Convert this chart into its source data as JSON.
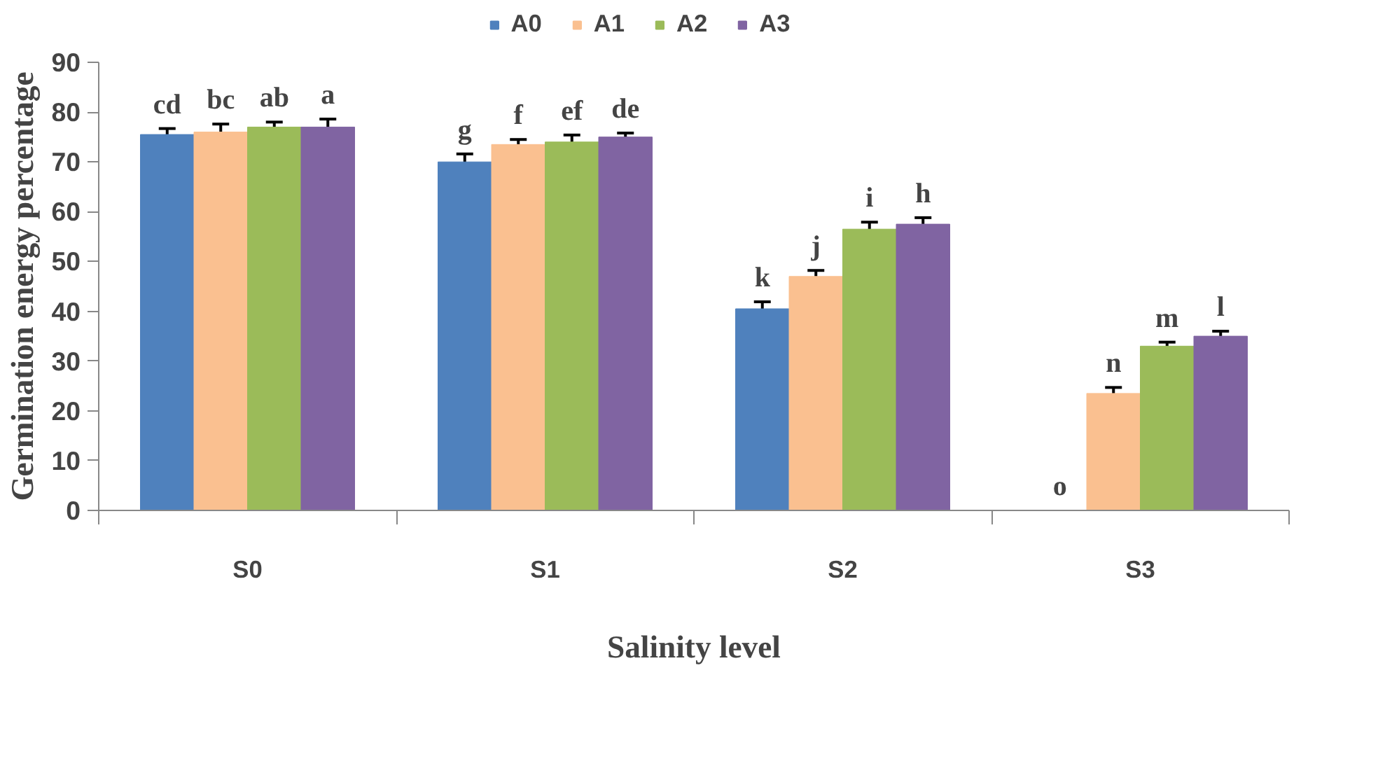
{
  "chart_data": {
    "type": "bar",
    "xlabel": "Salinity level",
    "ylabel": "Germination energy percentage",
    "categories": [
      "S0",
      "S1",
      "S2",
      "S3"
    ],
    "series": [
      {
        "name": "A0",
        "color": "#4f81bd",
        "values": [
          75.5,
          70,
          40.5,
          0
        ],
        "errors": [
          1.2,
          1.6,
          1.4,
          null
        ],
        "value_labels": [
          "cd",
          "g",
          "k",
          "o"
        ]
      },
      {
        "name": "A1",
        "color": "#fac090",
        "values": [
          76,
          73.5,
          47,
          23.5
        ],
        "errors": [
          1.6,
          1.0,
          1.2,
          1.2
        ],
        "value_labels": [
          "bc",
          "f",
          "j",
          "n"
        ]
      },
      {
        "name": "A2",
        "color": "#9bbb59",
        "values": [
          77,
          74,
          56.5,
          33
        ],
        "errors": [
          1.0,
          1.4,
          1.4,
          0.8
        ],
        "value_labels": [
          "ab",
          "ef",
          "i",
          "m"
        ]
      },
      {
        "name": "A3",
        "color": "#8064a2",
        "values": [
          77,
          75,
          57.5,
          35
        ],
        "errors": [
          1.6,
          0.8,
          1.3,
          1.0
        ],
        "value_labels": [
          "a",
          "de",
          "h",
          "l"
        ]
      }
    ],
    "ylim": [
      0,
      90
    ],
    "yticks": [
      0,
      10,
      20,
      30,
      40,
      50,
      60,
      70,
      80,
      90
    ],
    "grid": false,
    "legend": "top"
  }
}
